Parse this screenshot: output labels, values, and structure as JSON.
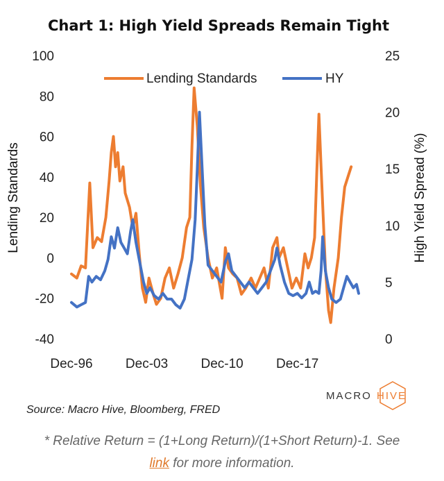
{
  "chart_data": {
    "type": "line",
    "title": "Chart 1: High Yield Spreads Remain Tight",
    "ylabel_left": "Lending Standards",
    "ylabel_right": "High Yield Spread (%)",
    "ylim_left": [
      -40,
      100
    ],
    "ylim_right": [
      0,
      25
    ],
    "yticks_left": [
      100,
      80,
      60,
      40,
      20,
      0,
      -20,
      -40
    ],
    "yticks_right": [
      25,
      20,
      15,
      10,
      5,
      0
    ],
    "xlim": [
      1996.9,
      2024.5
    ],
    "x_tick_labels": [
      {
        "label": "Dec-96",
        "x": 1996.9
      },
      {
        "label": "Dec-03",
        "x": 2003.9
      },
      {
        "label": "Dec-10",
        "x": 2010.9
      },
      {
        "label": "Dec-17",
        "x": 2017.9
      }
    ],
    "legend": [
      {
        "label": "Lending Standards",
        "color": "#ed7d31"
      },
      {
        "label": "HY",
        "color": "#4472c4"
      }
    ],
    "series": [
      {
        "name": "Lending Standards",
        "axis": "left",
        "color": "#ed7d31",
        "points": [
          [
            1996.9,
            -8
          ],
          [
            1997.4,
            -10
          ],
          [
            1997.8,
            -4
          ],
          [
            1998.2,
            -5
          ],
          [
            1998.6,
            37
          ],
          [
            1998.9,
            5
          ],
          [
            1999.3,
            10
          ],
          [
            1999.7,
            8
          ],
          [
            2000.1,
            20
          ],
          [
            2000.4,
            38
          ],
          [
            2000.6,
            52
          ],
          [
            2000.8,
            60
          ],
          [
            2001.0,
            45
          ],
          [
            2001.2,
            52
          ],
          [
            2001.4,
            38
          ],
          [
            2001.7,
            45
          ],
          [
            2001.9,
            32
          ],
          [
            2002.3,
            25
          ],
          [
            2002.6,
            15
          ],
          [
            2002.9,
            22
          ],
          [
            2003.2,
            2
          ],
          [
            2003.5,
            -15
          ],
          [
            2003.8,
            -22
          ],
          [
            2004.1,
            -10
          ],
          [
            2004.5,
            -18
          ],
          [
            2004.8,
            -23
          ],
          [
            2005.2,
            -20
          ],
          [
            2005.6,
            -10
          ],
          [
            2006.0,
            -5
          ],
          [
            2006.4,
            -15
          ],
          [
            2006.8,
            -8
          ],
          [
            2007.2,
            0
          ],
          [
            2007.6,
            15
          ],
          [
            2007.9,
            20
          ],
          [
            2008.1,
            55
          ],
          [
            2008.3,
            84
          ],
          [
            2008.6,
            65
          ],
          [
            2008.9,
            35
          ],
          [
            2009.2,
            15
          ],
          [
            2009.6,
            0
          ],
          [
            2010.0,
            -10
          ],
          [
            2010.4,
            -5
          ],
          [
            2010.9,
            -20
          ],
          [
            2011.2,
            5
          ],
          [
            2011.5,
            -5
          ],
          [
            2011.9,
            -8
          ],
          [
            2012.3,
            -10
          ],
          [
            2012.7,
            -18
          ],
          [
            2013.1,
            -15
          ],
          [
            2013.6,
            -10
          ],
          [
            2014.0,
            -15
          ],
          [
            2014.4,
            -10
          ],
          [
            2014.8,
            -5
          ],
          [
            2015.2,
            -15
          ],
          [
            2015.6,
            5
          ],
          [
            2016.0,
            10
          ],
          [
            2016.2,
            0
          ],
          [
            2016.6,
            5
          ],
          [
            2017.0,
            -5
          ],
          [
            2017.4,
            -15
          ],
          [
            2017.8,
            -10
          ],
          [
            2018.2,
            -15
          ],
          [
            2018.6,
            2
          ],
          [
            2018.9,
            -5
          ],
          [
            2019.2,
            0
          ],
          [
            2019.5,
            10
          ],
          [
            2019.7,
            42
          ],
          [
            2019.9,
            71
          ],
          [
            2020.1,
            45
          ],
          [
            2020.3,
            20
          ],
          [
            2020.5,
            -5
          ],
          [
            2020.8,
            -26
          ],
          [
            2021.0,
            -32
          ],
          [
            2021.3,
            -15
          ],
          [
            2021.7,
            0
          ],
          [
            2022.0,
            20
          ],
          [
            2022.3,
            35
          ],
          [
            2022.6,
            40
          ],
          [
            2022.9,
            45
          ]
        ]
      },
      {
        "name": "HY",
        "axis": "right",
        "color": "#4472c4",
        "points": [
          [
            1996.9,
            3.2
          ],
          [
            1997.4,
            2.8
          ],
          [
            1997.8,
            3.0
          ],
          [
            1998.2,
            3.2
          ],
          [
            1998.5,
            5.5
          ],
          [
            1998.8,
            5.0
          ],
          [
            1999.2,
            5.5
          ],
          [
            1999.6,
            5.2
          ],
          [
            2000.0,
            6.0
          ],
          [
            2000.3,
            7.0
          ],
          [
            2000.6,
            9.0
          ],
          [
            2000.9,
            8.0
          ],
          [
            2001.2,
            9.8
          ],
          [
            2001.5,
            8.5
          ],
          [
            2001.8,
            8.0
          ],
          [
            2002.1,
            7.5
          ],
          [
            2002.4,
            9.5
          ],
          [
            2002.6,
            10.5
          ],
          [
            2002.9,
            8.5
          ],
          [
            2003.3,
            6.5
          ],
          [
            2003.6,
            5.0
          ],
          [
            2003.9,
            4.0
          ],
          [
            2004.2,
            4.5
          ],
          [
            2004.6,
            3.8
          ],
          [
            2005.0,
            3.5
          ],
          [
            2005.4,
            4.0
          ],
          [
            2005.8,
            3.5
          ],
          [
            2006.2,
            3.5
          ],
          [
            2006.6,
            3.0
          ],
          [
            2007.0,
            2.7
          ],
          [
            2007.4,
            3.5
          ],
          [
            2007.8,
            5.5
          ],
          [
            2008.1,
            7.0
          ],
          [
            2008.4,
            10.5
          ],
          [
            2008.6,
            15.0
          ],
          [
            2008.8,
            20.0
          ],
          [
            2009.0,
            16.0
          ],
          [
            2009.3,
            10.0
          ],
          [
            2009.6,
            6.5
          ],
          [
            2010.0,
            6.0
          ],
          [
            2010.4,
            5.5
          ],
          [
            2010.8,
            5.0
          ],
          [
            2011.2,
            6.8
          ],
          [
            2011.5,
            7.5
          ],
          [
            2011.8,
            6.0
          ],
          [
            2012.2,
            5.5
          ],
          [
            2012.6,
            5.0
          ],
          [
            2013.0,
            4.5
          ],
          [
            2013.4,
            5.0
          ],
          [
            2013.8,
            4.5
          ],
          [
            2014.2,
            4.0
          ],
          [
            2014.6,
            4.5
          ],
          [
            2015.0,
            5.0
          ],
          [
            2015.4,
            6.0
          ],
          [
            2015.8,
            7.0
          ],
          [
            2016.0,
            8.0
          ],
          [
            2016.3,
            6.5
          ],
          [
            2016.7,
            5.0
          ],
          [
            2017.1,
            4.0
          ],
          [
            2017.5,
            3.8
          ],
          [
            2017.9,
            4.0
          ],
          [
            2018.3,
            3.6
          ],
          [
            2018.7,
            4.0
          ],
          [
            2019.0,
            5.0
          ],
          [
            2019.3,
            4.0
          ],
          [
            2019.6,
            4.2
          ],
          [
            2019.9,
            4.0
          ],
          [
            2020.1,
            6.0
          ],
          [
            2020.25,
            9.0
          ],
          [
            2020.5,
            6.0
          ],
          [
            2020.8,
            4.5
          ],
          [
            2021.1,
            3.5
          ],
          [
            2021.5,
            3.2
          ],
          [
            2021.9,
            3.5
          ],
          [
            2022.2,
            4.5
          ],
          [
            2022.5,
            5.5
          ],
          [
            2022.8,
            5.0
          ],
          [
            2023.1,
            4.5
          ],
          [
            2023.4,
            4.8
          ],
          [
            2023.6,
            4.0
          ]
        ]
      }
    ]
  },
  "source": "Source: Macro Hive, Bloomberg, FRED",
  "logo": {
    "left": "MACRO",
    "right": "HIVE",
    "accent_color": "#ed7d31"
  },
  "footnote": {
    "line1": "* Relative Return = (1+Long Return)/(1+Short Return)-1. See",
    "link": "link",
    "line2_rest": " for more information."
  }
}
